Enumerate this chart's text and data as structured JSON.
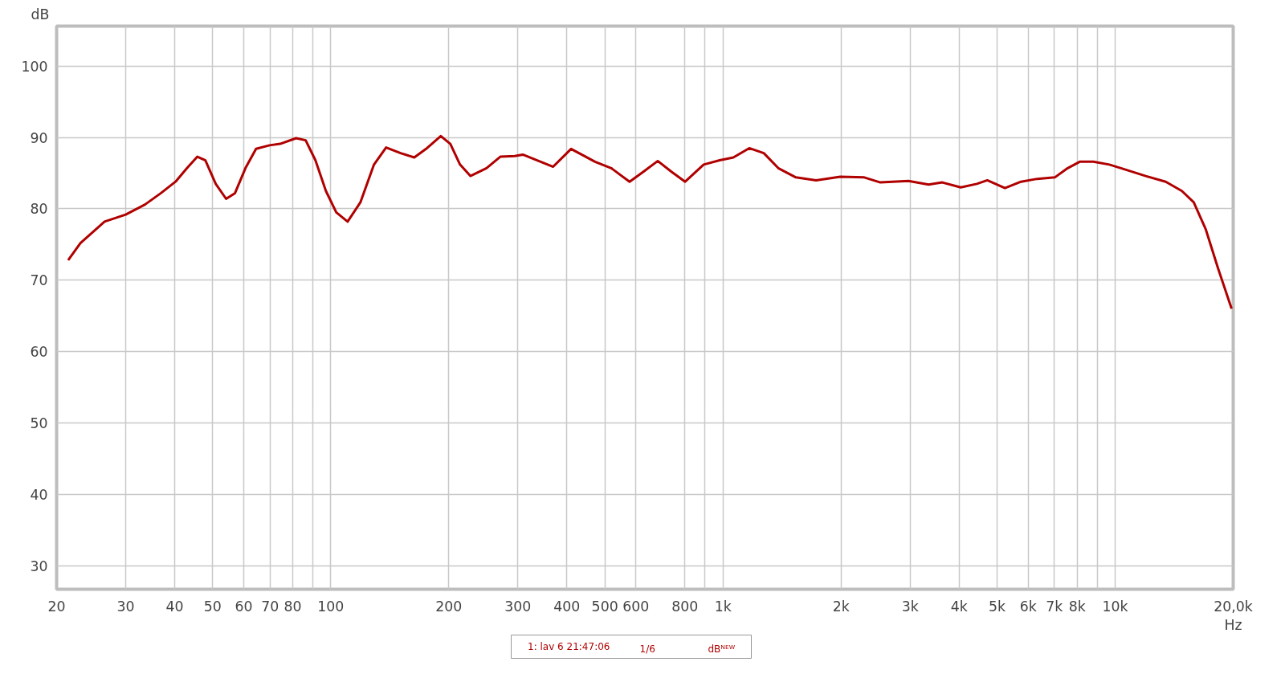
{
  "chart_data": {
    "type": "line",
    "xlabel": "Hz",
    "ylabel": "dB",
    "log": "x",
    "grid": true,
    "legend": "bottom",
    "marker": "none",
    "line_style": "solid",
    "xlim": [
      20,
      20000
    ],
    "ylim": [
      26.7,
      105.6
    ],
    "xticks": [
      20,
      30,
      40,
      50,
      60,
      70,
      80,
      {
        "value": 90,
        "label": null
      },
      100,
      200,
      300,
      400,
      500,
      600,
      800,
      {
        "value": 900,
        "label": null
      },
      {
        "value": 1000,
        "label": "1k"
      },
      {
        "value": 2000,
        "label": "2k"
      },
      {
        "value": 3000,
        "label": "3k"
      },
      {
        "value": 4000,
        "label": "4k"
      },
      {
        "value": 5000,
        "label": "5k"
      },
      {
        "value": 6000,
        "label": "6k"
      },
      {
        "value": 7000,
        "label": "7k"
      },
      {
        "value": 8000,
        "label": "8k"
      },
      {
        "value": 9000,
        "label": null
      },
      {
        "value": 10000,
        "label": "10k"
      },
      {
        "value": 20000,
        "label": "20,0k"
      }
    ],
    "yticks": [
      30,
      40,
      50,
      60,
      70,
      80,
      90,
      100
    ],
    "annotations": [
      "1/6",
      "dBᴺᴱᵂ"
    ],
    "x": [
      21.4,
      23.0,
      26.5,
      30.0,
      33.6,
      36.9,
      40.2,
      43.0,
      45.7,
      47.9,
      50.9,
      54.1,
      57.0,
      60.6,
      64.5,
      69.8,
      74.3,
      81.6,
      86.3,
      91.4,
      97.2,
      103.3,
      110.4,
      119,
      128.9,
      138.4,
      150.7,
      163.3,
      175,
      190.8,
      201.8,
      213.6,
      227,
      249.5,
      270.6,
      294.5,
      308.8,
      336,
      369,
      410,
      440,
      472,
      519,
      578,
      627,
      682,
      739,
      801,
      893,
      981,
      1063,
      1167,
      1271,
      1384,
      1535,
      1728,
      1991,
      2293,
      2520,
      2972,
      3345,
      3625,
      4040,
      4440,
      4721,
      5236,
      5754,
      6324,
      7016,
      7568,
      8121,
      8799,
      9665,
      10627,
      11967,
      13460,
      14800,
      15868,
      17031,
      18290,
      19815
    ],
    "series": [
      {
        "name": "1: lav 6 21:47:06",
        "color": "#b00000",
        "values": [
          72.8,
          75.2,
          78.2,
          79.2,
          80.6,
          82.2,
          83.8,
          85.7,
          87.3,
          86.8,
          83.5,
          81.4,
          82.2,
          85.7,
          88.4,
          88.9,
          89.1,
          89.9,
          89.6,
          86.8,
          82.5,
          79.5,
          78.2,
          80.9,
          86.2,
          88.6,
          87.8,
          87.2,
          88.4,
          90.2,
          89.1,
          86.2,
          84.6,
          85.7,
          87.3,
          87.4,
          87.6,
          86.8,
          85.9,
          88.4,
          87.5,
          86.6,
          85.7,
          83.8,
          85.2,
          86.7,
          85.2,
          83.8,
          86.2,
          86.8,
          87.2,
          88.5,
          87.8,
          85.7,
          84.4,
          84.0,
          84.5,
          84.4,
          83.7,
          83.9,
          83.4,
          83.7,
          83.0,
          83.5,
          84.0,
          82.9,
          83.8,
          84.2,
          84.4,
          85.7,
          86.6,
          86.6,
          86.2,
          85.5,
          84.6,
          83.8,
          82.5,
          80.9,
          77.1,
          71.7,
          66.0
        ]
      }
    ]
  }
}
